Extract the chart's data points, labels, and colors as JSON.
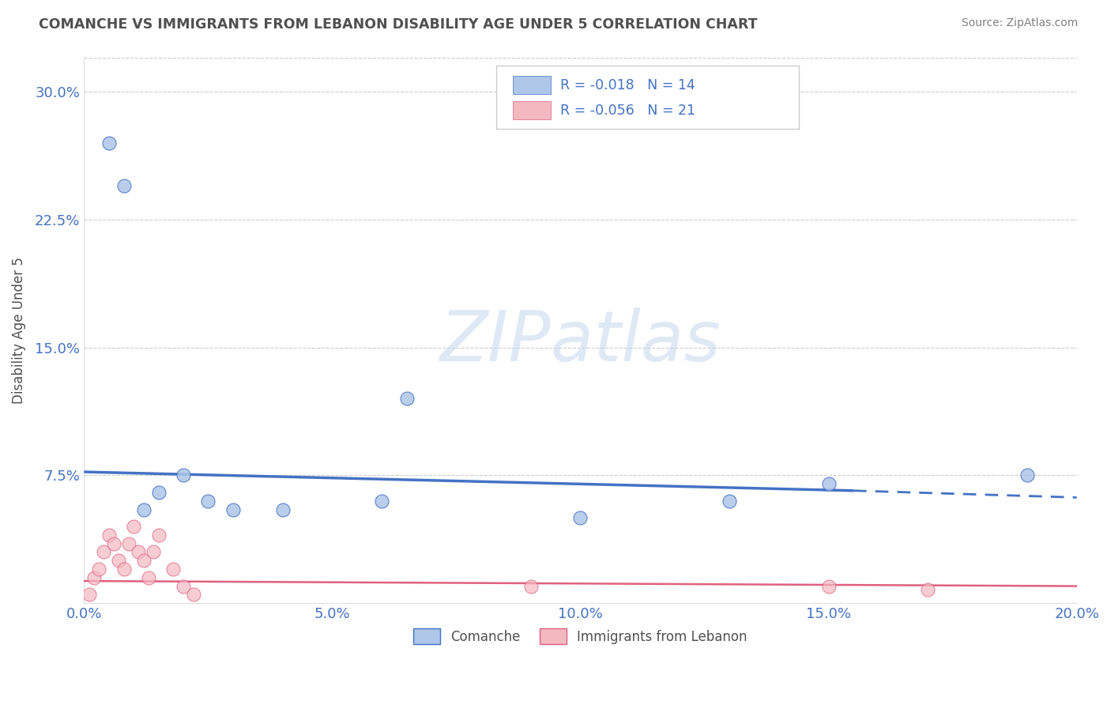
{
  "title": "COMANCHE VS IMMIGRANTS FROM LEBANON DISABILITY AGE UNDER 5 CORRELATION CHART",
  "source": "Source: ZipAtlas.com",
  "ylabel": "Disability Age Under 5",
  "xlim": [
    0.0,
    0.2
  ],
  "ylim": [
    0.0,
    0.32
  ],
  "xticks": [
    0.0,
    0.05,
    0.1,
    0.15,
    0.2
  ],
  "yticks": [
    0.0,
    0.075,
    0.15,
    0.225,
    0.3
  ],
  "ytick_labels": [
    "",
    "7.5%",
    "15.0%",
    "22.5%",
    "30.0%"
  ],
  "xtick_labels": [
    "0.0%",
    "5.0%",
    "10.0%",
    "15.0%",
    "20.0%"
  ],
  "legend_entries": [
    {
      "label": "Comanche",
      "color": "#aec6e8",
      "R": "-0.018",
      "N": "14"
    },
    {
      "label": "Immigrants from Lebanon",
      "color": "#f4b8c1",
      "R": "-0.056",
      "N": "21"
    }
  ],
  "comanche_x": [
    0.005,
    0.008,
    0.012,
    0.015,
    0.02,
    0.025,
    0.03,
    0.04,
    0.06,
    0.065,
    0.1,
    0.13,
    0.15,
    0.19
  ],
  "comanche_y": [
    0.27,
    0.245,
    0.055,
    0.065,
    0.075,
    0.06,
    0.055,
    0.055,
    0.06,
    0.12,
    0.05,
    0.06,
    0.07,
    0.075
  ],
  "lebanon_x": [
    0.001,
    0.002,
    0.003,
    0.004,
    0.005,
    0.006,
    0.007,
    0.008,
    0.009,
    0.01,
    0.011,
    0.012,
    0.013,
    0.014,
    0.015,
    0.018,
    0.02,
    0.022,
    0.09,
    0.15,
    0.17
  ],
  "lebanon_y": [
    0.005,
    0.015,
    0.02,
    0.03,
    0.04,
    0.035,
    0.025,
    0.02,
    0.035,
    0.045,
    0.03,
    0.025,
    0.015,
    0.03,
    0.04,
    0.02,
    0.01,
    0.005,
    0.01,
    0.01,
    0.008
  ],
  "comanche_line_color": "#4472c4",
  "lebanon_line_color": "#e06080",
  "scatter_blue": "#aec6e8",
  "scatter_pink": "#f4b8c1",
  "watermark_text": "ZIPatlas",
  "background_color": "#ffffff",
  "grid_color": "#cccccc",
  "title_color": "#505050",
  "axis_label_color": "#505050",
  "tick_label_color": "#4472c4",
  "source_color": "#808080"
}
